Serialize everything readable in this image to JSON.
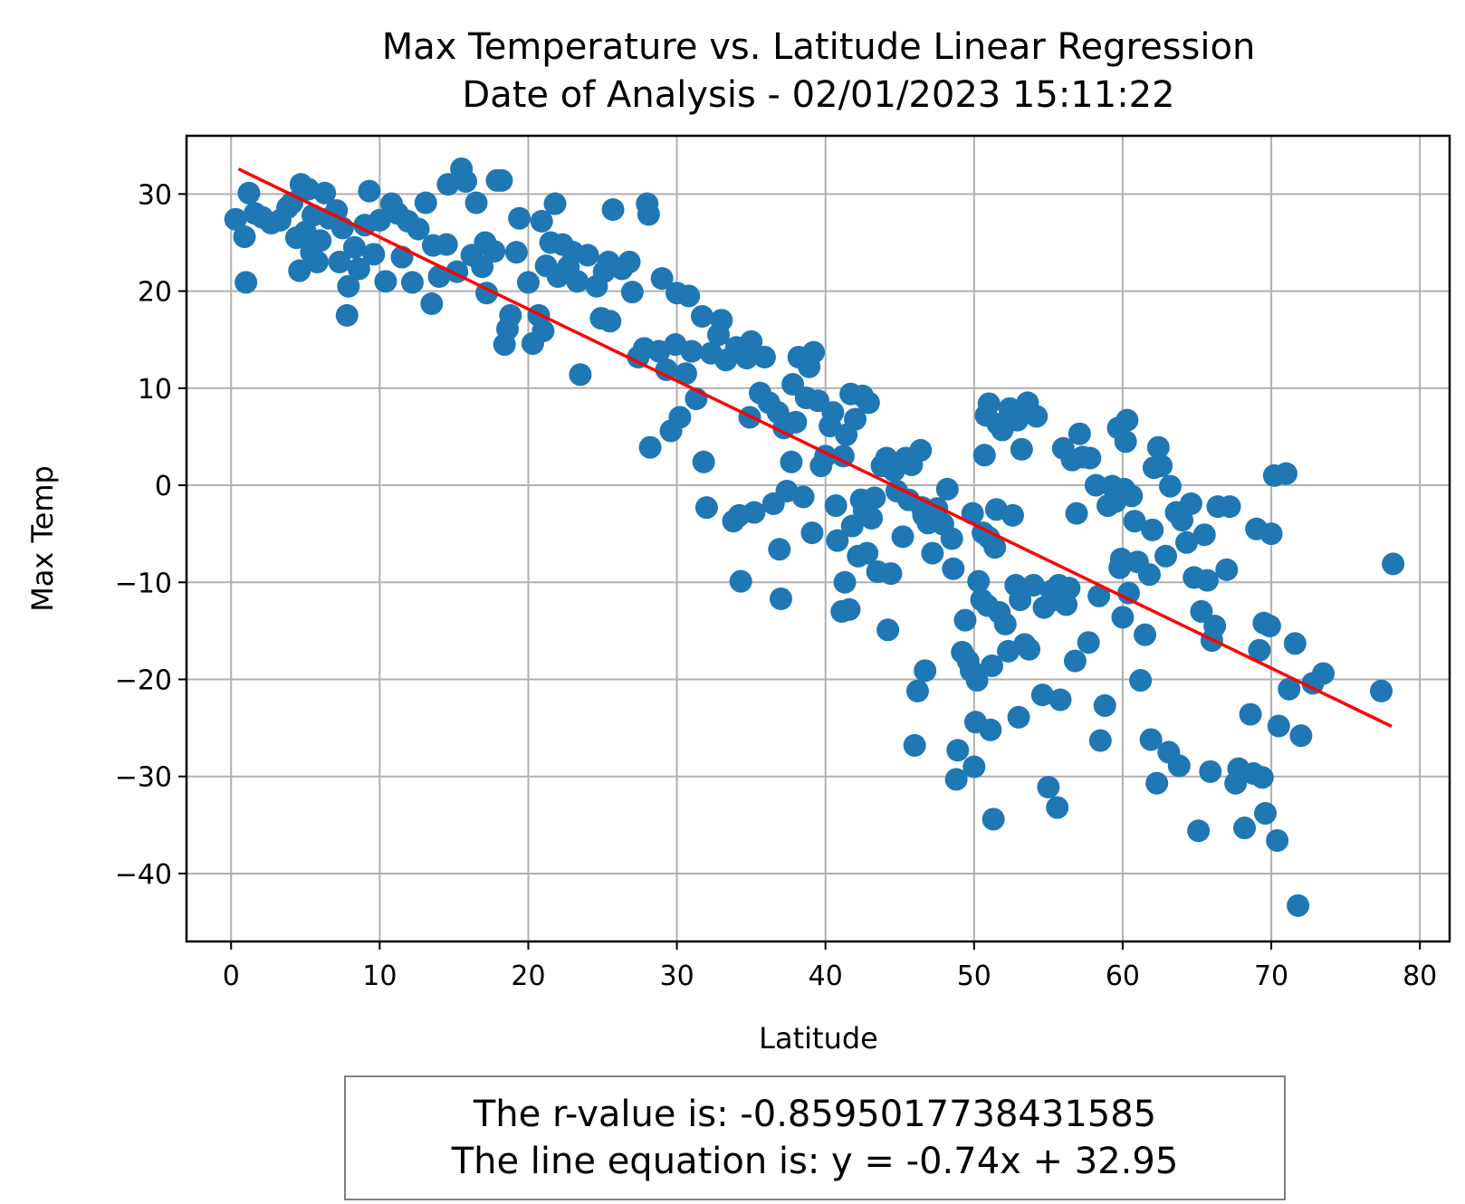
{
  "chart_data": {
    "type": "scatter",
    "title": "Max Temperature vs. Latitude Linear Regression",
    "subtitle": "Date of Analysis - 02/01/2023 15:11:22",
    "xlabel": "Latitude",
    "ylabel": "Max Temp",
    "xlim": [
      -3,
      82
    ],
    "ylim": [
      -47,
      36
    ],
    "xticks": [
      0,
      10,
      20,
      30,
      40,
      50,
      60,
      70,
      80
    ],
    "yticks": [
      -40,
      -30,
      -20,
      -10,
      0,
      10,
      20,
      30
    ],
    "grid": true,
    "colors": {
      "points": "#1f77b4",
      "regression": "#ff0000",
      "grid": "#b0b0b0",
      "annotation_border": "#808080"
    },
    "regression": {
      "slope": -0.74,
      "intercept": 32.95,
      "x_range": [
        0.5,
        78.1
      ]
    },
    "annotation": {
      "r_value": "The r-value is: -0.8595017738431585",
      "equation": "The line equation is: y = -0.74x + 32.95"
    },
    "points": [
      [
        0.3,
        27.4
      ],
      [
        0.9,
        25.6
      ],
      [
        1.0,
        20.9
      ],
      [
        1.2,
        30.1
      ],
      [
        1.6,
        28.0
      ],
      [
        2.1,
        27.6
      ],
      [
        2.7,
        27.0
      ],
      [
        3.3,
        27.3
      ],
      [
        3.8,
        28.6
      ],
      [
        4.1,
        29.1
      ],
      [
        4.4,
        25.5
      ],
      [
        4.6,
        22.1
      ],
      [
        4.7,
        31.0
      ],
      [
        5.0,
        26.1
      ],
      [
        5.2,
        30.5
      ],
      [
        5.4,
        24.0
      ],
      [
        5.5,
        27.8
      ],
      [
        5.8,
        23.0
      ],
      [
        6.0,
        25.2
      ],
      [
        6.3,
        30.1
      ],
      [
        6.6,
        27.5
      ],
      [
        7.1,
        28.3
      ],
      [
        7.3,
        23.0
      ],
      [
        7.5,
        26.5
      ],
      [
        7.8,
        17.5
      ],
      [
        7.9,
        20.5
      ],
      [
        8.3,
        24.5
      ],
      [
        8.6,
        22.3
      ],
      [
        9.0,
        26.8
      ],
      [
        9.3,
        30.3
      ],
      [
        9.6,
        23.8
      ],
      [
        10.0,
        27.3
      ],
      [
        10.4,
        21.0
      ],
      [
        10.8,
        29.0
      ],
      [
        11.2,
        28.0
      ],
      [
        11.5,
        23.5
      ],
      [
        11.9,
        27.2
      ],
      [
        12.2,
        20.9
      ],
      [
        12.6,
        26.4
      ],
      [
        13.1,
        29.1
      ],
      [
        13.5,
        18.7
      ],
      [
        13.6,
        24.7
      ],
      [
        14.0,
        21.5
      ],
      [
        14.5,
        24.8
      ],
      [
        14.6,
        31.0
      ],
      [
        15.2,
        22.0
      ],
      [
        15.5,
        32.6
      ],
      [
        15.8,
        31.3
      ],
      [
        16.2,
        23.7
      ],
      [
        16.5,
        29.1
      ],
      [
        16.9,
        22.5
      ],
      [
        17.1,
        25.0
      ],
      [
        17.2,
        19.8
      ],
      [
        17.7,
        24.1
      ],
      [
        17.9,
        31.4
      ],
      [
        18.2,
        31.4
      ],
      [
        18.4,
        14.5
      ],
      [
        18.6,
        16.1
      ],
      [
        18.8,
        17.5
      ],
      [
        19.2,
        24.0
      ],
      [
        19.4,
        27.5
      ],
      [
        20.0,
        20.9
      ],
      [
        20.3,
        14.6
      ],
      [
        20.7,
        17.5
      ],
      [
        20.9,
        27.2
      ],
      [
        21.0,
        15.9
      ],
      [
        21.2,
        22.6
      ],
      [
        21.5,
        25.0
      ],
      [
        21.8,
        29.0
      ],
      [
        22.0,
        21.5
      ],
      [
        22.3,
        24.8
      ],
      [
        22.7,
        22.5
      ],
      [
        23.0,
        24.0
      ],
      [
        23.3,
        21.0
      ],
      [
        23.5,
        11.4
      ],
      [
        24.0,
        23.7
      ],
      [
        24.6,
        20.5
      ],
      [
        24.9,
        17.2
      ],
      [
        25.1,
        22.0
      ],
      [
        25.4,
        23.0
      ],
      [
        25.5,
        16.9
      ],
      [
        25.7,
        28.4
      ],
      [
        26.3,
        22.3
      ],
      [
        26.8,
        23.0
      ],
      [
        27.0,
        19.9
      ],
      [
        27.4,
        13.2
      ],
      [
        27.8,
        14.1
      ],
      [
        28.0,
        29.0
      ],
      [
        28.1,
        27.9
      ],
      [
        28.2,
        3.9
      ],
      [
        28.8,
        13.8
      ],
      [
        29.0,
        21.3
      ],
      [
        29.3,
        11.9
      ],
      [
        29.6,
        5.6
      ],
      [
        29.9,
        14.5
      ],
      [
        30.0,
        19.8
      ],
      [
        30.2,
        7.0
      ],
      [
        30.6,
        11.5
      ],
      [
        30.8,
        19.5
      ],
      [
        31.0,
        13.8
      ],
      [
        31.3,
        8.9
      ],
      [
        31.7,
        17.4
      ],
      [
        31.8,
        2.4
      ],
      [
        32.0,
        -2.3
      ],
      [
        32.3,
        13.6
      ],
      [
        32.8,
        15.5
      ],
      [
        33.0,
        17.0
      ],
      [
        33.3,
        12.9
      ],
      [
        33.8,
        -3.7
      ],
      [
        34.0,
        14.2
      ],
      [
        34.2,
        -3.1
      ],
      [
        34.3,
        -9.9
      ],
      [
        34.7,
        13.1
      ],
      [
        34.9,
        7.0
      ],
      [
        35.0,
        14.8
      ],
      [
        35.2,
        -2.8
      ],
      [
        35.6,
        9.5
      ],
      [
        35.9,
        13.2
      ],
      [
        36.2,
        8.5
      ],
      [
        36.5,
        -1.9
      ],
      [
        36.8,
        7.5
      ],
      [
        36.9,
        -6.6
      ],
      [
        37.0,
        -11.7
      ],
      [
        37.2,
        5.9
      ],
      [
        37.4,
        -0.6
      ],
      [
        37.7,
        2.4
      ],
      [
        37.8,
        10.4
      ],
      [
        38.0,
        6.5
      ],
      [
        38.2,
        13.2
      ],
      [
        38.5,
        -1.2
      ],
      [
        38.7,
        9.0
      ],
      [
        38.9,
        12.2
      ],
      [
        39.1,
        -4.9
      ],
      [
        39.2,
        13.7
      ],
      [
        39.5,
        8.7
      ],
      [
        39.7,
        2.0
      ],
      [
        40.0,
        3.0
      ],
      [
        40.3,
        6.1
      ],
      [
        40.5,
        7.5
      ],
      [
        40.7,
        -2.1
      ],
      [
        40.8,
        -5.7
      ],
      [
        41.1,
        -13.0
      ],
      [
        41.2,
        3.0
      ],
      [
        41.3,
        -10.0
      ],
      [
        41.4,
        5.2
      ],
      [
        41.6,
        -12.8
      ],
      [
        41.7,
        9.4
      ],
      [
        41.8,
        -4.2
      ],
      [
        42.0,
        6.8
      ],
      [
        42.2,
        -7.3
      ],
      [
        42.4,
        -1.5
      ],
      [
        42.5,
        9.2
      ],
      [
        42.6,
        -2.6
      ],
      [
        42.8,
        -7.0
      ],
      [
        42.9,
        8.5
      ],
      [
        43.1,
        -3.4
      ],
      [
        43.3,
        -1.3
      ],
      [
        43.5,
        -8.9
      ],
      [
        43.8,
        2.0
      ],
      [
        44.1,
        2.8
      ],
      [
        44.2,
        -14.9
      ],
      [
        44.4,
        -9.1
      ],
      [
        44.6,
        1.5
      ],
      [
        44.8,
        -0.6
      ],
      [
        45.2,
        -5.3
      ],
      [
        45.4,
        2.8
      ],
      [
        45.6,
        -1.5
      ],
      [
        45.8,
        2.1
      ],
      [
        46.0,
        -26.8
      ],
      [
        46.2,
        -21.2
      ],
      [
        46.4,
        3.6
      ],
      [
        46.5,
        -2.3
      ],
      [
        46.6,
        -3.1
      ],
      [
        46.7,
        -19.1
      ],
      [
        46.9,
        -3.9
      ],
      [
        47.2,
        -7.0
      ],
      [
        47.5,
        -2.4
      ],
      [
        47.9,
        -4.0
      ],
      [
        48.2,
        -0.4
      ],
      [
        48.5,
        -5.5
      ],
      [
        48.6,
        -8.6
      ],
      [
        48.8,
        -30.3
      ],
      [
        48.9,
        -27.3
      ],
      [
        49.2,
        -17.2
      ],
      [
        49.4,
        -13.9
      ],
      [
        49.6,
        -18.1
      ],
      [
        49.8,
        -19.1
      ],
      [
        49.9,
        -2.9
      ],
      [
        50.0,
        -29.0
      ],
      [
        50.1,
        -24.4
      ],
      [
        50.2,
        -20.1
      ],
      [
        50.3,
        -9.9
      ],
      [
        50.5,
        -11.8
      ],
      [
        50.6,
        -4.9
      ],
      [
        50.7,
        3.1
      ],
      [
        50.8,
        7.2
      ],
      [
        50.9,
        -12.4
      ],
      [
        51.0,
        -5.4
      ],
      [
        51.0,
        8.4
      ],
      [
        51.1,
        -25.2
      ],
      [
        51.2,
        -18.6
      ],
      [
        51.3,
        -34.4
      ],
      [
        51.4,
        -6.4
      ],
      [
        51.5,
        -2.5
      ],
      [
        51.6,
        6.3
      ],
      [
        51.7,
        -13.1
      ],
      [
        51.9,
        5.7
      ],
      [
        52.1,
        -14.3
      ],
      [
        52.3,
        -17.1
      ],
      [
        52.4,
        7.9
      ],
      [
        52.6,
        -3.1
      ],
      [
        52.8,
        -10.3
      ],
      [
        52.9,
        6.7
      ],
      [
        53.0,
        -23.9
      ],
      [
        53.1,
        -11.8
      ],
      [
        53.2,
        3.7
      ],
      [
        53.4,
        -16.4
      ],
      [
        53.6,
        8.5
      ],
      [
        53.7,
        -16.9
      ],
      [
        54.0,
        -10.3
      ],
      [
        54.2,
        7.1
      ],
      [
        54.6,
        -21.6
      ],
      [
        54.7,
        -12.6
      ],
      [
        55.0,
        -31.1
      ],
      [
        55.2,
        -10.9
      ],
      [
        55.4,
        -11.8
      ],
      [
        55.6,
        -33.2
      ],
      [
        55.7,
        -10.3
      ],
      [
        55.8,
        -22.1
      ],
      [
        56.0,
        3.8
      ],
      [
        56.2,
        -12.3
      ],
      [
        56.4,
        -10.6
      ],
      [
        56.6,
        2.6
      ],
      [
        56.8,
        -18.1
      ],
      [
        56.9,
        -2.9
      ],
      [
        57.1,
        5.3
      ],
      [
        57.3,
        2.9
      ],
      [
        57.7,
        -16.2
      ],
      [
        57.8,
        2.8
      ],
      [
        58.2,
        0.0
      ],
      [
        58.4,
        -11.4
      ],
      [
        58.5,
        -26.3
      ],
      [
        58.8,
        -22.7
      ],
      [
        59.0,
        -2.1
      ],
      [
        59.3,
        -0.1
      ],
      [
        59.5,
        -1.7
      ],
      [
        59.7,
        5.9
      ],
      [
        59.8,
        -8.5
      ],
      [
        59.9,
        -7.6
      ],
      [
        60.0,
        -13.6
      ],
      [
        60.1,
        -0.4
      ],
      [
        60.2,
        4.5
      ],
      [
        60.3,
        6.7
      ],
      [
        60.4,
        -11.1
      ],
      [
        60.6,
        -1.1
      ],
      [
        60.8,
        -3.7
      ],
      [
        61.0,
        -7.9
      ],
      [
        61.2,
        -20.1
      ],
      [
        61.5,
        -15.4
      ],
      [
        61.8,
        -9.2
      ],
      [
        61.9,
        -26.2
      ],
      [
        62.0,
        -4.6
      ],
      [
        62.1,
        1.8
      ],
      [
        62.3,
        -30.7
      ],
      [
        62.4,
        3.9
      ],
      [
        62.6,
        2.0
      ],
      [
        62.9,
        -7.3
      ],
      [
        63.1,
        -27.5
      ],
      [
        63.2,
        -0.1
      ],
      [
        63.6,
        -2.8
      ],
      [
        63.8,
        -28.9
      ],
      [
        64.0,
        -3.6
      ],
      [
        64.3,
        -5.9
      ],
      [
        64.6,
        -1.9
      ],
      [
        64.8,
        -9.5
      ],
      [
        65.1,
        -35.6
      ],
      [
        65.3,
        -13.0
      ],
      [
        65.5,
        -5.1
      ],
      [
        65.7,
        -9.8
      ],
      [
        65.9,
        -29.5
      ],
      [
        66.0,
        -16.0
      ],
      [
        66.2,
        -14.5
      ],
      [
        66.4,
        -2.2
      ],
      [
        67.0,
        -8.7
      ],
      [
        67.2,
        -2.2
      ],
      [
        67.6,
        -30.7
      ],
      [
        67.8,
        -29.2
      ],
      [
        68.2,
        -35.3
      ],
      [
        68.6,
        -23.6
      ],
      [
        68.8,
        -29.7
      ],
      [
        69.0,
        -4.5
      ],
      [
        69.2,
        -17.0
      ],
      [
        69.4,
        -30.1
      ],
      [
        69.5,
        -14.2
      ],
      [
        69.6,
        -33.8
      ],
      [
        69.9,
        -14.5
      ],
      [
        70.0,
        -5.0
      ],
      [
        70.2,
        1.0
      ],
      [
        70.4,
        -36.6
      ],
      [
        70.5,
        -24.8
      ],
      [
        71.0,
        1.2
      ],
      [
        71.2,
        -21.0
      ],
      [
        71.6,
        -16.3
      ],
      [
        71.8,
        -43.3
      ],
      [
        72.0,
        -25.8
      ],
      [
        72.8,
        -20.4
      ],
      [
        73.5,
        -19.4
      ],
      [
        77.4,
        -21.2
      ],
      [
        78.2,
        -8.1
      ]
    ]
  }
}
